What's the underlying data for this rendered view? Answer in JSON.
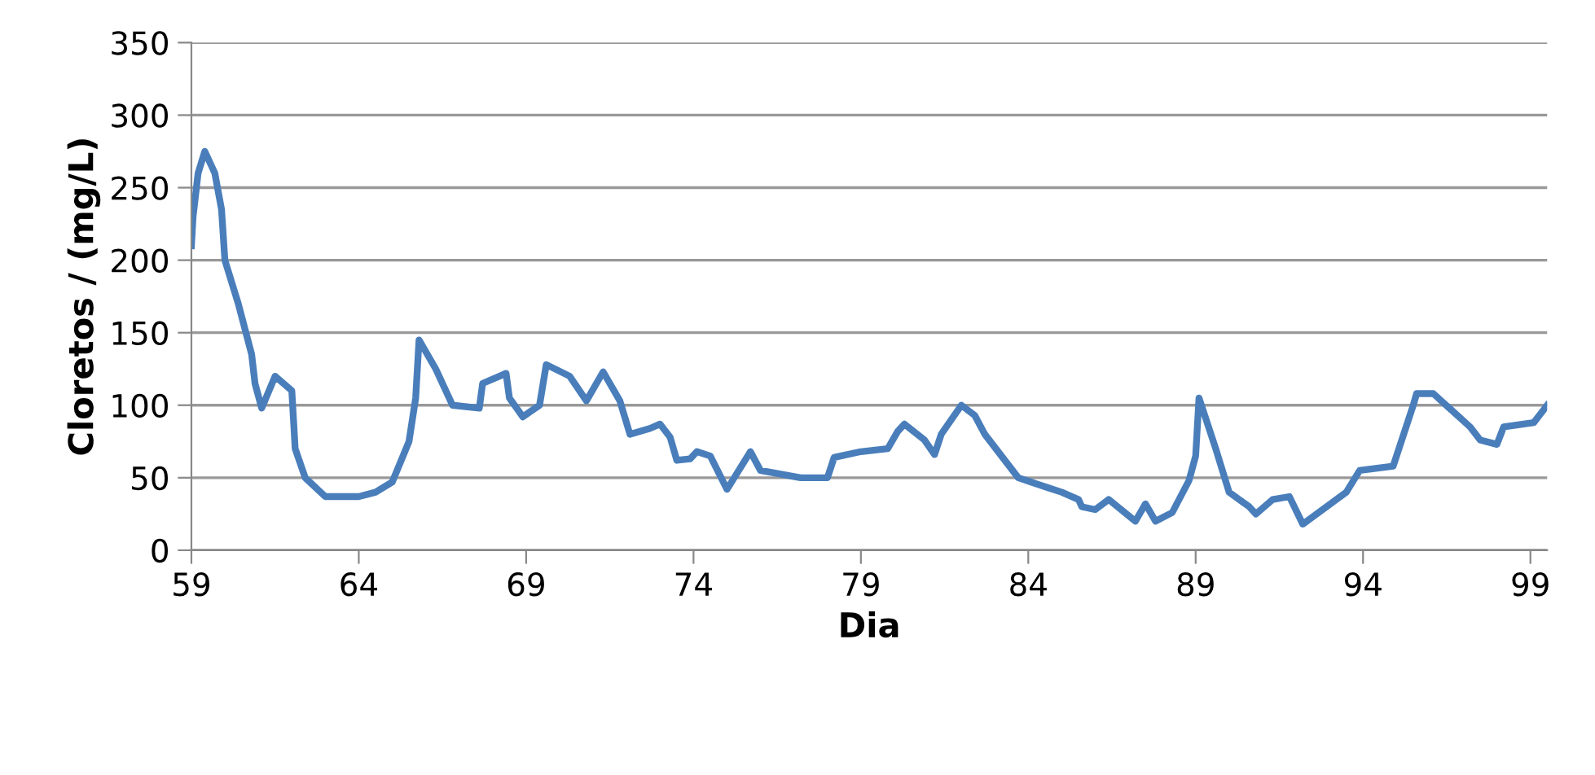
{
  "chart_data": {
    "type": "line",
    "xlabel": "Dia",
    "ylabel": "Cloretos / (mg/L)",
    "xlim": [
      59,
      99.5
    ],
    "xticks": [
      59,
      64,
      69,
      74,
      79,
      84,
      89,
      94,
      99
    ],
    "ylim": [
      0,
      350
    ],
    "yticks": [
      0,
      50,
      100,
      150,
      200,
      250,
      300,
      350
    ],
    "grid": "y",
    "marker": "none",
    "line_style": "solid",
    "series": [
      {
        "color": "#4a7ebb",
        "x": [
          59.0,
          59.05,
          59.2,
          59.4,
          59.7,
          59.9,
          60.0,
          60.4,
          60.8,
          60.9,
          61.1,
          61.5,
          62.0,
          62.1,
          62.4,
          63.0,
          64.0,
          64.5,
          65.0,
          65.5,
          65.7,
          65.8,
          66.3,
          66.8,
          67.6,
          67.7,
          68.4,
          68.5,
          68.9,
          69.4,
          69.6,
          70.3,
          70.8,
          71.3,
          71.8,
          72.1,
          72.7,
          73.0,
          73.3,
          73.5,
          73.9,
          74.1,
          74.5,
          75.0,
          75.7,
          76.0,
          77.2,
          78.0,
          78.2,
          79.0,
          79.8,
          80.1,
          80.3,
          80.9,
          81.2,
          81.4,
          82.0,
          82.4,
          82.7,
          83.7,
          84.6,
          85.0,
          85.5,
          85.6,
          86.0,
          86.4,
          87.2,
          87.5,
          87.8,
          88.3,
          88.8,
          89.0,
          89.1,
          89.6,
          90.0,
          90.6,
          90.8,
          91.3,
          91.8,
          92.2,
          93.5,
          93.9,
          94.9,
          95.5,
          95.6,
          96.1,
          97.2,
          97.5,
          98.0,
          98.2,
          98.8,
          99.1,
          99.5
        ],
        "values": [
          210,
          230,
          260,
          275,
          260,
          235,
          200,
          170,
          135,
          115,
          98,
          120,
          110,
          70,
          50,
          37,
          37,
          40,
          47,
          75,
          105,
          145,
          125,
          100,
          98,
          115,
          122,
          105,
          92,
          100,
          128,
          120,
          103,
          123,
          103,
          80,
          84,
          87,
          78,
          62,
          63,
          68,
          65,
          42,
          68,
          55,
          50,
          50,
          64,
          68,
          70,
          82,
          87,
          76,
          66,
          80,
          100,
          93,
          80,
          50,
          43,
          40,
          35,
          30,
          28,
          35,
          20,
          32,
          20,
          26,
          48,
          65,
          105,
          70,
          40,
          30,
          25,
          35,
          37,
          18,
          40,
          55,
          58,
          100,
          108,
          108,
          85,
          76,
          73,
          85,
          87,
          88,
          100
        ]
      }
    ]
  }
}
